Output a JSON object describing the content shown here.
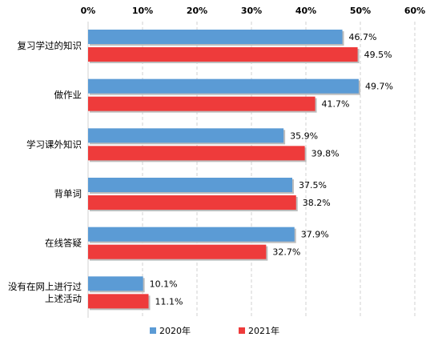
{
  "chart_data": {
    "type": "bar",
    "orientation": "horizontal",
    "categories": [
      "复习学过的知识",
      "做作业",
      "学习课外知识",
      "背单词",
      "在线答疑",
      "没有在网上进行过上述活动"
    ],
    "category_lines": [
      [
        "复习学过的知识"
      ],
      [
        "做作业"
      ],
      [
        "学习课外知识"
      ],
      [
        "背单词"
      ],
      [
        "在线答疑"
      ],
      [
        "没有在网上进行过",
        "上述活动"
      ]
    ],
    "series": [
      {
        "name": "2020年",
        "color": "#5B9BD5",
        "values": [
          46.7,
          49.7,
          35.9,
          37.5,
          37.9,
          10.1
        ],
        "labels": [
          "46.7%",
          "49.7%",
          "35.9%",
          "37.5%",
          "37.9%",
          "10.1%"
        ]
      },
      {
        "name": "2021年",
        "color": "#EE3B3B",
        "values": [
          49.5,
          41.7,
          39.8,
          38.2,
          32.7,
          11.1
        ],
        "labels": [
          "49.5%",
          "41.7%",
          "39.8%",
          "38.2%",
          "32.7%",
          "11.1%"
        ]
      }
    ],
    "xlim": [
      0,
      60
    ],
    "x_ticks": [
      0,
      10,
      20,
      30,
      40,
      50,
      60
    ],
    "x_tick_labels": [
      "0%",
      "10%",
      "20%",
      "30%",
      "40%",
      "50%",
      "60%"
    ],
    "x_axis_position": "top",
    "grid": "vertical-dashed",
    "legend_position": "bottom"
  }
}
